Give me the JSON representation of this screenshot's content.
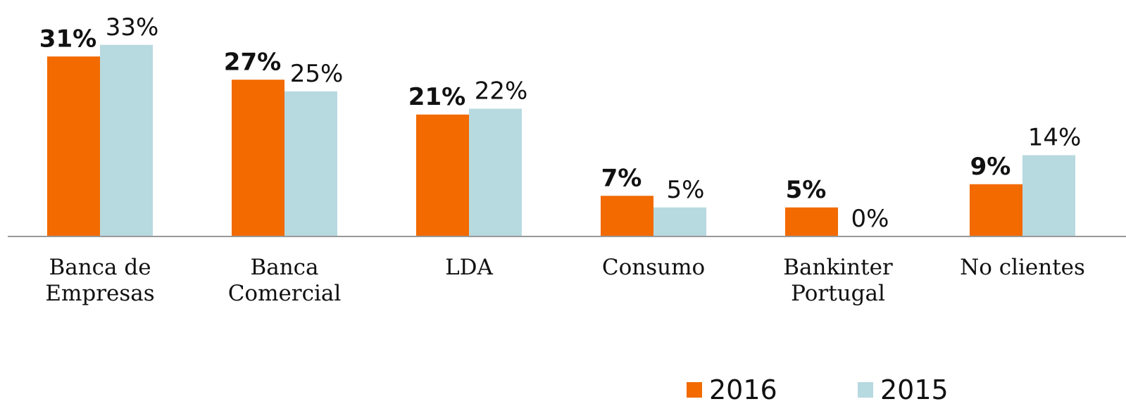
{
  "chart_data": {
    "type": "bar",
    "categories": [
      "Banca de Empresas",
      "Banca Comercial",
      "LDA",
      "Consumo",
      "Bankinter Portugal",
      "No clientes"
    ],
    "series": [
      {
        "name": "2016",
        "color": "#f26a00",
        "values": [
          31,
          27,
          21,
          7,
          5,
          9
        ],
        "value_labels": [
          "31%",
          "27%",
          "21%",
          "7%",
          "5%",
          "9%"
        ]
      },
      {
        "name": "2015",
        "color": "#b7d9e0",
        "values": [
          33,
          25,
          22,
          5,
          0,
          14
        ],
        "value_labels": [
          "33%",
          "25%",
          "22%",
          "5%",
          "0%",
          "14%"
        ]
      }
    ]
  }
}
